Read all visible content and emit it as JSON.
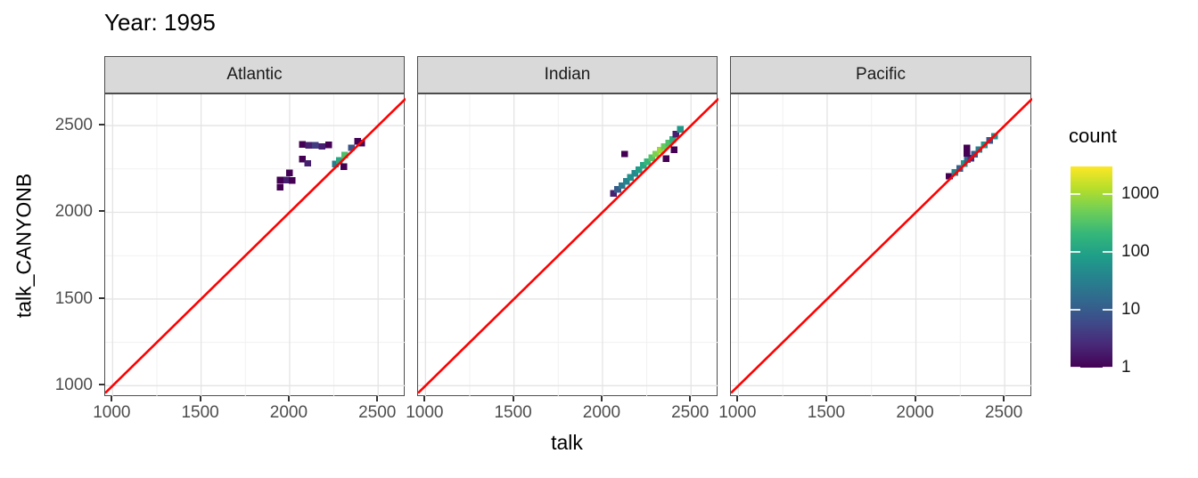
{
  "title": "Year: 1995",
  "colors": {
    "background": "#ffffff",
    "strip_bg": "#d9d9d9",
    "panel_border": "#4d4d4d",
    "grid_major": "#e4e4e4",
    "grid_minor": "#f1f1f1",
    "tick_text": "#4d4d4d",
    "reference_line": "#ff0000",
    "viridis": [
      "#440154",
      "#482878",
      "#3E4A89",
      "#31688E",
      "#26828E",
      "#1F9E89",
      "#35B779",
      "#6ECE58",
      "#B5DE2B",
      "#FDE725"
    ]
  },
  "chart_data": {
    "type": "heatmap",
    "subtype": "2d-binned scatter (geom_bin2d), faceted by ocean basin",
    "title": "Year: 1995",
    "xlabel": "talk",
    "ylabel": "talk_CANYONB",
    "xlim": [
      958,
      2655
    ],
    "ylim": [
      935,
      2680
    ],
    "x_ticks": [
      1000,
      1500,
      2000,
      2500
    ],
    "y_ticks": [
      1000,
      1500,
      2000,
      2500
    ],
    "x_minor_ticks": [
      1250,
      1750,
      2250
    ],
    "y_minor_ticks": [
      1250,
      1750,
      2250
    ],
    "grid": true,
    "reference_line": "y = x",
    "bin_size": 38,
    "legend": {
      "title": "count",
      "scale": "log10",
      "ticks": [
        1000,
        100,
        10,
        1
      ],
      "max": 3000,
      "position": "right"
    },
    "facets": [
      {
        "label": "Atlantic",
        "bins": [
          [
            2072,
            2392,
            1
          ],
          [
            2108,
            2386,
            2
          ],
          [
            2145,
            2386,
            4
          ],
          [
            2182,
            2380,
            2
          ],
          [
            2220,
            2388,
            1
          ],
          [
            2072,
            2306,
            1
          ],
          [
            2102,
            2282,
            2
          ],
          [
            2000,
            2228,
            1
          ],
          [
            1947,
            2186,
            1
          ],
          [
            1984,
            2186,
            2
          ],
          [
            2015,
            2183,
            1
          ],
          [
            1947,
            2144,
            1
          ],
          [
            2258,
            2278,
            30
          ],
          [
            2280,
            2298,
            120
          ],
          [
            2312,
            2330,
            300
          ],
          [
            2350,
            2372,
            8
          ],
          [
            2385,
            2410,
            1
          ],
          [
            2408,
            2398,
            1
          ],
          [
            2307,
            2262,
            1
          ]
        ]
      },
      {
        "label": "Indian",
        "bins": [
          [
            2062,
            2108,
            2
          ],
          [
            2086,
            2132,
            10
          ],
          [
            2110,
            2154,
            25
          ],
          [
            2134,
            2178,
            35
          ],
          [
            2158,
            2202,
            55
          ],
          [
            2182,
            2224,
            45
          ],
          [
            2206,
            2246,
            80
          ],
          [
            2230,
            2270,
            120
          ],
          [
            2254,
            2292,
            200
          ],
          [
            2278,
            2314,
            350
          ],
          [
            2302,
            2336,
            600
          ],
          [
            2326,
            2358,
            900
          ],
          [
            2350,
            2378,
            450
          ],
          [
            2374,
            2398,
            300
          ],
          [
            2398,
            2420,
            150
          ],
          [
            2415,
            2450,
            2
          ],
          [
            2440,
            2478,
            70
          ],
          [
            2124,
            2336,
            1
          ],
          [
            2360,
            2310,
            1
          ],
          [
            2405,
            2360,
            1
          ]
        ]
      },
      {
        "label": "Pacific",
        "bins": [
          [
            2188,
            2208,
            1
          ],
          [
            2220,
            2230,
            40
          ],
          [
            2247,
            2253,
            12
          ],
          [
            2273,
            2280,
            70
          ],
          [
            2290,
            2305,
            15
          ],
          [
            2310,
            2312,
            3
          ],
          [
            2330,
            2334,
            10
          ],
          [
            2355,
            2362,
            30
          ],
          [
            2385,
            2388,
            60
          ],
          [
            2415,
            2414,
            8
          ],
          [
            2443,
            2439,
            50
          ],
          [
            2287,
            2340,
            1
          ],
          [
            2287,
            2372,
            1
          ]
        ]
      }
    ]
  }
}
